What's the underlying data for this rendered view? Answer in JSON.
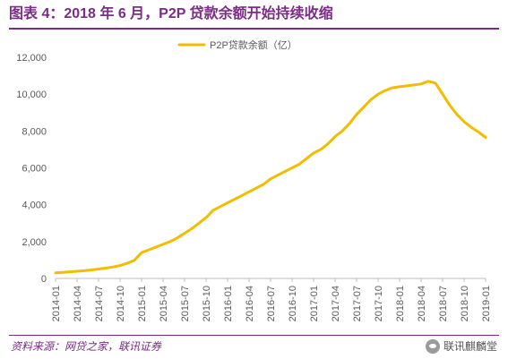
{
  "title": "图表 4：2018 年 6 月，P2P 贷款余额开始持续收缩",
  "source": "资料来源：网贷之家，联讯证券",
  "watermark": {
    "text": "联讯麒麟堂",
    "icon": "wechat-icon"
  },
  "colors": {
    "accent": "#7B2C86",
    "line": "#F2BC00",
    "axis": "#BFBFBF",
    "text": "#595959"
  },
  "chart_data": {
    "type": "line",
    "title": "",
    "xlabel": "",
    "ylabel": "",
    "ylim": [
      0,
      12000
    ],
    "yticks": [
      "0",
      "2,000",
      "4,000",
      "6,000",
      "8,000",
      "10,000",
      "12,000"
    ],
    "grid": false,
    "legend_position": "top-center",
    "x": [
      "2014-01",
      "2014-02",
      "2014-03",
      "2014-04",
      "2014-05",
      "2014-06",
      "2014-07",
      "2014-08",
      "2014-09",
      "2014-10",
      "2014-11",
      "2014-12",
      "2015-01",
      "2015-02",
      "2015-03",
      "2015-04",
      "2015-05",
      "2015-06",
      "2015-07",
      "2015-08",
      "2015-09",
      "2015-10",
      "2015-11",
      "2015-12",
      "2016-01",
      "2016-02",
      "2016-03",
      "2016-04",
      "2016-05",
      "2016-06",
      "2016-07",
      "2016-08",
      "2016-09",
      "2016-10",
      "2016-11",
      "2016-12",
      "2017-01",
      "2017-02",
      "2017-03",
      "2017-04",
      "2017-05",
      "2017-06",
      "2017-07",
      "2017-08",
      "2017-09",
      "2017-10",
      "2017-11",
      "2017-12",
      "2018-01",
      "2018-02",
      "2018-03",
      "2018-04",
      "2018-05",
      "2018-06",
      "2018-07",
      "2018-08",
      "2018-09",
      "2018-10",
      "2018-11",
      "2018-12",
      "2019-01"
    ],
    "xticks": [
      "2014-01",
      "2014-04",
      "2014-07",
      "2014-10",
      "2015-01",
      "2015-04",
      "2015-07",
      "2015-10",
      "2016-01",
      "2016-04",
      "2016-07",
      "2016-10",
      "2017-01",
      "2017-04",
      "2017-07",
      "2017-10",
      "2018-01",
      "2018-04",
      "2018-07",
      "2018-10",
      "2019-01"
    ],
    "series": [
      {
        "name": "P2P贷款余额（亿）",
        "values": [
          300,
          330,
          360,
          390,
          420,
          460,
          510,
          560,
          620,
          700,
          820,
          980,
          1400,
          1550,
          1700,
          1850,
          2000,
          2200,
          2450,
          2700,
          3000,
          3300,
          3700,
          3900,
          4100,
          4300,
          4500,
          4700,
          4900,
          5100,
          5400,
          5600,
          5800,
          6000,
          6200,
          6500,
          6800,
          7000,
          7300,
          7700,
          8000,
          8400,
          8900,
          9300,
          9700,
          10000,
          10200,
          10350,
          10400,
          10450,
          10500,
          10550,
          10700,
          10600,
          10000,
          9400,
          8900,
          8500,
          8200,
          7950,
          7650
        ]
      }
    ]
  }
}
